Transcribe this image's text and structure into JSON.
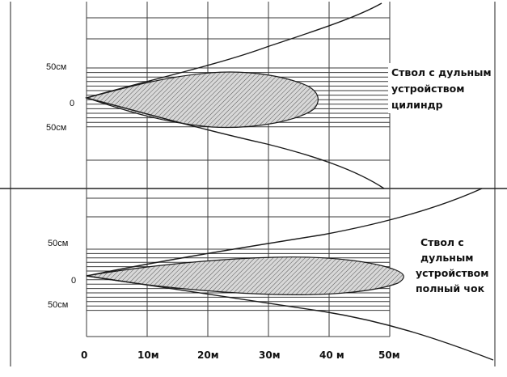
{
  "top": {
    "y_labels": {
      "upper": "50см",
      "zero": "0",
      "lower": "50см"
    },
    "caption_lines": [
      "Ствол с дульным",
      "устройством",
      "цилиндр"
    ]
  },
  "bottom": {
    "y_labels": {
      "upper": "50см",
      "zero": "0",
      "lower": "50см"
    },
    "caption_lines": [
      "Ствол с",
      "дульным",
      "устройством",
      "полный чок"
    ]
  },
  "x_axis": {
    "ticks": [
      "0",
      "10м",
      "20м",
      "30м",
      "40 м",
      "50м"
    ]
  },
  "colors": {
    "line": "#1a1a1a",
    "grid": "#3a3a3a",
    "background": "#ffffff"
  }
}
